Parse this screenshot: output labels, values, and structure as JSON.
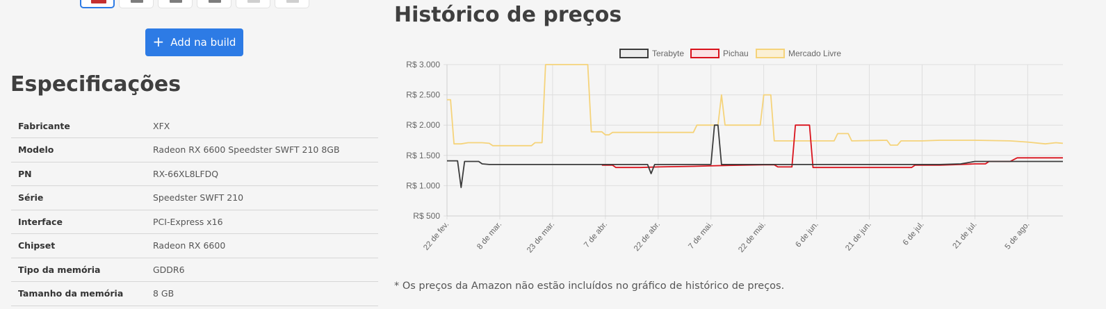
{
  "thumbnails": [
    {
      "label": "product-image-1",
      "active": true
    },
    {
      "label": "product-image-2",
      "active": false
    },
    {
      "label": "product-image-3",
      "active": false
    },
    {
      "label": "product-image-4",
      "active": false
    },
    {
      "label": "product-image-5",
      "active": false
    },
    {
      "label": "product-image-6",
      "active": false
    }
  ],
  "add_button": {
    "label": "Add na build",
    "icon": "plus-icon"
  },
  "specs": {
    "title": "Especificações",
    "rows": [
      {
        "key": "Fabricante",
        "value": "XFX"
      },
      {
        "key": "Modelo",
        "value": "Radeon RX 6600 Speedster SWFT 210 8GB"
      },
      {
        "key": "PN",
        "value": "RX-66XL8LFDQ"
      },
      {
        "key": "Série",
        "value": "Speedster SWFT 210"
      },
      {
        "key": "Interface",
        "value": "PCI-Express x16"
      },
      {
        "key": "Chipset",
        "value": "Radeon RX 6600"
      },
      {
        "key": "Tipo da memória",
        "value": "GDDR6"
      },
      {
        "key": "Tamanho da memória",
        "value": "8 GB"
      }
    ]
  },
  "history": {
    "title": "Histórico de preços",
    "footnote": "* Os preços da Amazon não estão incluídos no gráfico de histórico de preços."
  },
  "chart_data": {
    "type": "line",
    "title": "",
    "xlabel": "",
    "ylabel": "",
    "x_domain": [
      0,
      175
    ],
    "ylim": [
      500,
      3000
    ],
    "y_ticks": [
      500,
      1000,
      1500,
      2000,
      2500,
      3000
    ],
    "y_tick_labels": [
      "R$ 500",
      "R$ 1.000",
      "R$ 1.500",
      "R$ 2.000",
      "R$ 2.500",
      "R$ 3.000"
    ],
    "x_ticks": [
      {
        "day": 0,
        "label": "22 de fev."
      },
      {
        "day": 15,
        "label": "8 de mar."
      },
      {
        "day": 30,
        "label": "23 de mar."
      },
      {
        "day": 45,
        "label": "7 de abr."
      },
      {
        "day": 60,
        "label": "22 de abr."
      },
      {
        "day": 75,
        "label": "7 de mai."
      },
      {
        "day": 90,
        "label": "22 de mai."
      },
      {
        "day": 105,
        "label": "6 de jun."
      },
      {
        "day": 120,
        "label": "21 de jun."
      },
      {
        "day": 135,
        "label": "6 de jul."
      },
      {
        "day": 150,
        "label": "21 de jul."
      },
      {
        "day": 165,
        "label": "5 de ago."
      }
    ],
    "grid": true,
    "legend_position": "top",
    "series": [
      {
        "name": "Terabyte",
        "color": "#3b3b3b",
        "fill": "#ebebeb",
        "points": [
          [
            -2,
            1410
          ],
          [
            0,
            1410
          ],
          [
            1,
            1410
          ],
          [
            2,
            1410
          ],
          [
            3,
            1410
          ],
          [
            4,
            970
          ],
          [
            5,
            1400
          ],
          [
            6,
            1400
          ],
          [
            7,
            1400
          ],
          [
            9,
            1400
          ],
          [
            10,
            1360
          ],
          [
            12,
            1350
          ],
          [
            20,
            1350
          ],
          [
            40,
            1350
          ],
          [
            55,
            1350
          ],
          [
            57,
            1350
          ],
          [
            58,
            1200
          ],
          [
            59,
            1350
          ],
          [
            72,
            1350
          ],
          [
            75,
            1350
          ],
          [
            76,
            2000
          ],
          [
            77,
            2000
          ],
          [
            78,
            1350
          ],
          [
            90,
            1350
          ],
          [
            100,
            1350
          ],
          [
            120,
            1350
          ],
          [
            130,
            1350
          ],
          [
            140,
            1350
          ],
          [
            146,
            1360
          ],
          [
            150,
            1400
          ],
          [
            155,
            1400
          ],
          [
            160,
            1400
          ],
          [
            165,
            1400
          ],
          [
            170,
            1400
          ],
          [
            175,
            1400
          ]
        ]
      },
      {
        "name": "Pichau",
        "color": "#d9121c",
        "fill": "#fbe3e5",
        "points": [
          [
            44,
            1340
          ],
          [
            47,
            1340
          ],
          [
            48,
            1300
          ],
          [
            50,
            1300
          ],
          [
            55,
            1300
          ],
          [
            60,
            1310
          ],
          [
            70,
            1320
          ],
          [
            80,
            1335
          ],
          [
            90,
            1345
          ],
          [
            93,
            1345
          ],
          [
            94,
            1310
          ],
          [
            98,
            1310
          ],
          [
            99,
            2000
          ],
          [
            103,
            2000
          ],
          [
            104,
            1300
          ],
          [
            120,
            1300
          ],
          [
            132,
            1300
          ],
          [
            133,
            1340
          ],
          [
            140,
            1340
          ],
          [
            146,
            1350
          ],
          [
            150,
            1360
          ],
          [
            153,
            1360
          ],
          [
            154,
            1400
          ],
          [
            160,
            1400
          ],
          [
            162,
            1460
          ],
          [
            165,
            1460
          ],
          [
            170,
            1460
          ],
          [
            175,
            1460
          ]
        ]
      },
      {
        "name": "Mercado Livre",
        "color": "#f5d37a",
        "fill": "#fbf0d4",
        "points": [
          [
            -2,
            2420
          ],
          [
            1,
            2420
          ],
          [
            2,
            1690
          ],
          [
            4,
            1690
          ],
          [
            6,
            1710
          ],
          [
            10,
            1710
          ],
          [
            12,
            1700
          ],
          [
            13,
            1660
          ],
          [
            16,
            1660
          ],
          [
            20,
            1660
          ],
          [
            24,
            1660
          ],
          [
            25,
            1710
          ],
          [
            27,
            1710
          ],
          [
            28,
            3000
          ],
          [
            30,
            3000
          ],
          [
            35,
            3000
          ],
          [
            40,
            3000
          ],
          [
            41,
            1890
          ],
          [
            44,
            1890
          ],
          [
            45,
            1840
          ],
          [
            46,
            1840
          ],
          [
            47,
            1880
          ],
          [
            55,
            1880
          ],
          [
            62,
            1880
          ],
          [
            70,
            1880
          ],
          [
            71,
            2000
          ],
          [
            77,
            2000
          ],
          [
            78,
            2500
          ],
          [
            79,
            2000
          ],
          [
            88,
            2000
          ],
          [
            89,
            2000
          ],
          [
            90,
            2500
          ],
          [
            92,
            2500
          ],
          [
            93,
            1740
          ],
          [
            110,
            1740
          ],
          [
            111,
            1860
          ],
          [
            114,
            1860
          ],
          [
            115,
            1740
          ],
          [
            125,
            1750
          ],
          [
            126,
            1670
          ],
          [
            128,
            1670
          ],
          [
            129,
            1740
          ],
          [
            135,
            1740
          ],
          [
            140,
            1750
          ],
          [
            150,
            1750
          ],
          [
            160,
            1740
          ],
          [
            165,
            1720
          ],
          [
            170,
            1690
          ],
          [
            173,
            1710
          ],
          [
            175,
            1700
          ]
        ]
      }
    ]
  }
}
